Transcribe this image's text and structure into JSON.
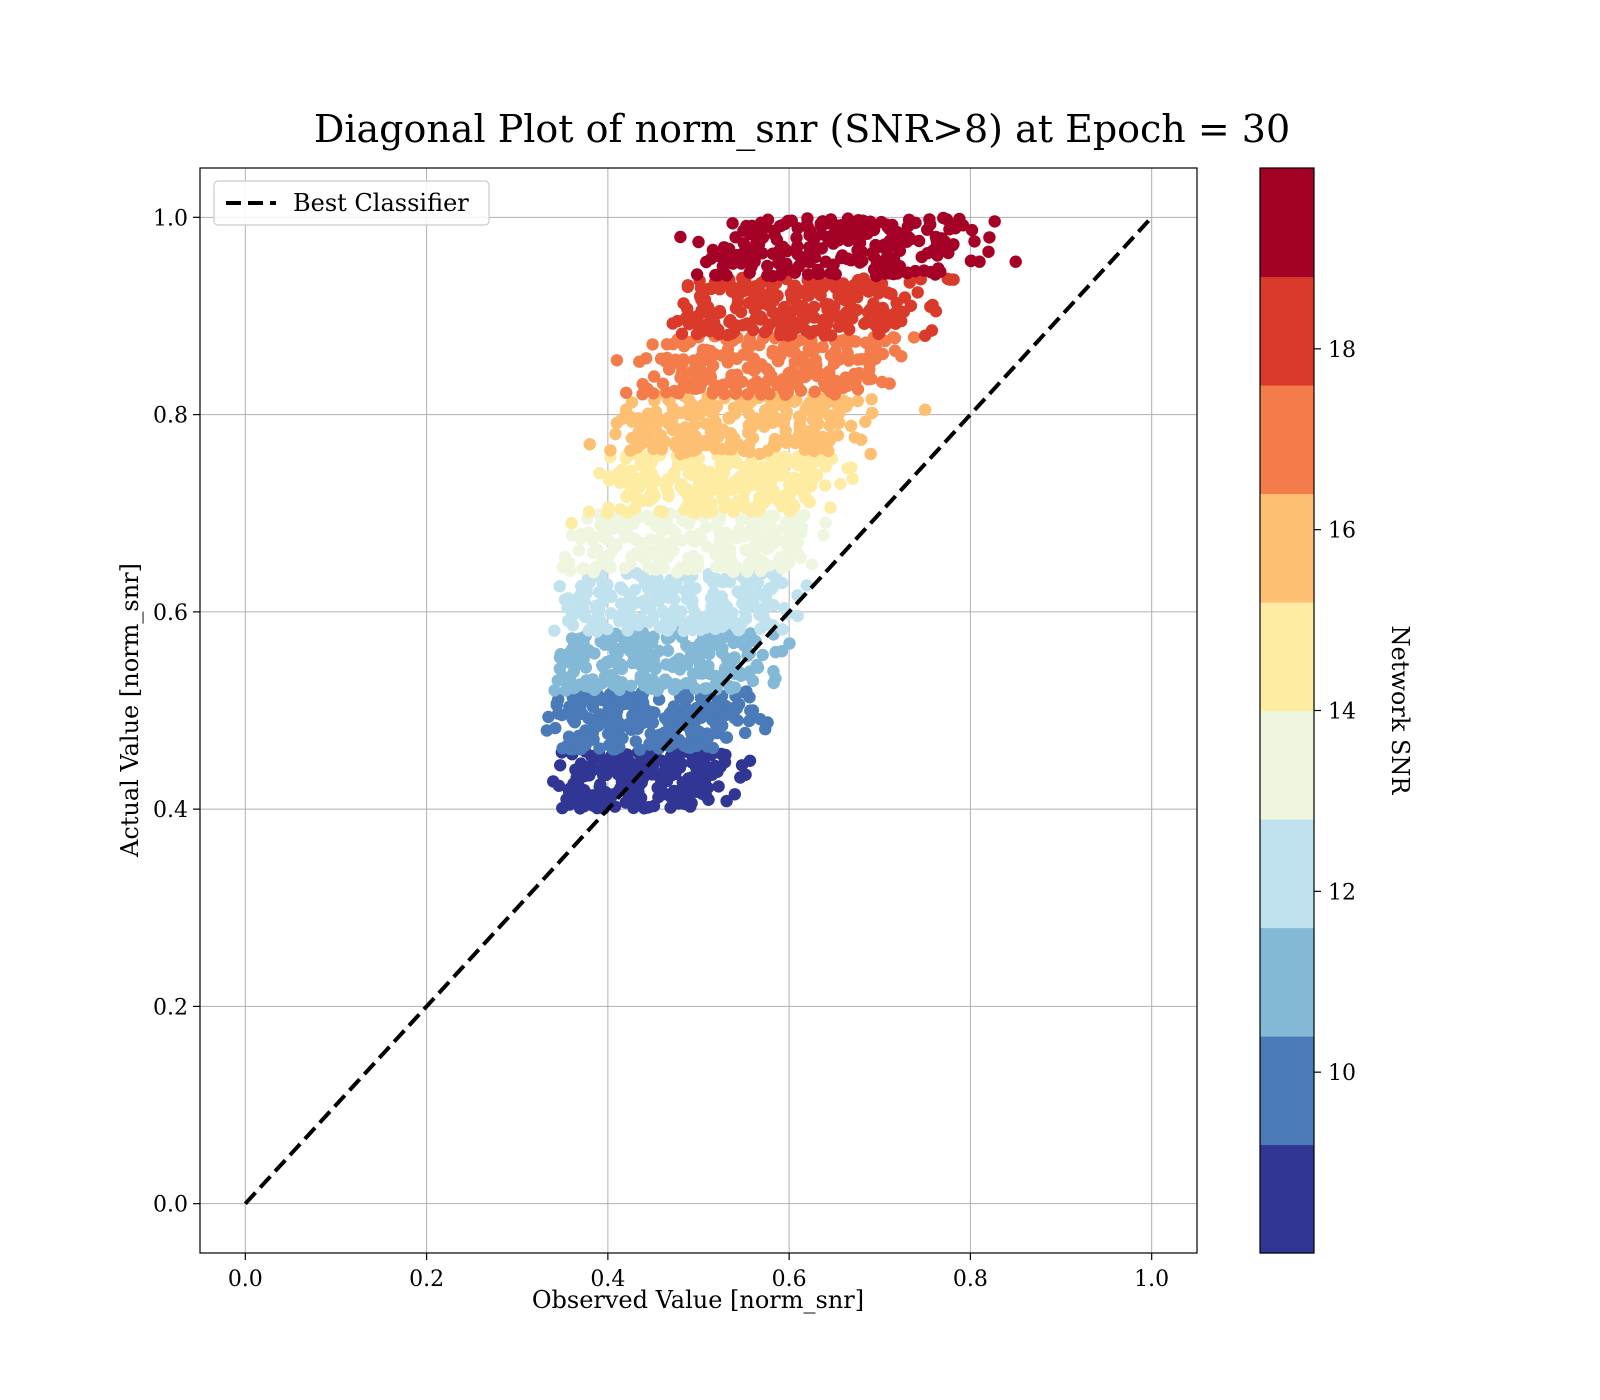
{
  "chart_data": {
    "type": "scatter",
    "title": "Diagonal Plot of norm_snr (SNR>8) at Epoch = 30",
    "xlabel": "Observed Value [norm_snr]",
    "ylabel": "Actual Value [norm_snr]",
    "xlim": [
      -0.05,
      1.05
    ],
    "ylim": [
      -0.05,
      1.05
    ],
    "xticks": [
      "0.0",
      "0.2",
      "0.4",
      "0.6",
      "0.8",
      "1.0"
    ],
    "yticks": [
      "0.0",
      "0.2",
      "0.4",
      "0.6",
      "0.8",
      "1.0"
    ],
    "grid": true,
    "legend": {
      "position": "top-left",
      "entries": [
        "Best Classifier"
      ]
    },
    "reference_line": {
      "name": "Best Classifier",
      "style": "dashed",
      "color": "#000000",
      "x": [
        0.0,
        1.0
      ],
      "y": [
        0.0,
        1.0
      ]
    },
    "colorbar": {
      "label": "Network SNR",
      "min": 8,
      "max": 20,
      "ticks": [
        "10",
        "12",
        "14",
        "16",
        "18"
      ],
      "tick_values": [
        10,
        12,
        14,
        16,
        18
      ],
      "colors": [
        "#313695",
        "#4575b4",
        "#74add1",
        "#abd9e9",
        "#e0f3f8",
        "#fee090",
        "#fdae61",
        "#f46d43",
        "#d73027",
        "#a50026"
      ],
      "display_colors": [
        "#313695",
        "#4a7ab7",
        "#83b8d7",
        "#c0e2ee",
        "#eef6e0",
        "#feeca2",
        "#fdbf71",
        "#f47c4a",
        "#da3a2a",
        "#a50026"
      ]
    },
    "bands": [
      {
        "snr": [
          8.0,
          9.2
        ],
        "y": [
          0.4,
          0.46
        ],
        "x_left": [
          0.35,
          0.37
        ],
        "x_right": [
          0.49,
          0.54
        ]
      },
      {
        "snr": [
          9.2,
          10.4
        ],
        "y": [
          0.46,
          0.52
        ],
        "x_left": [
          0.35,
          0.36
        ],
        "x_right": [
          0.53,
          0.56
        ]
      },
      {
        "snr": [
          10.4,
          11.6
        ],
        "y": [
          0.52,
          0.58
        ],
        "x_left": [
          0.35,
          0.36
        ],
        "x_right": [
          0.55,
          0.57
        ]
      },
      {
        "snr": [
          11.6,
          12.8
        ],
        "y": [
          0.58,
          0.64
        ],
        "x_left": [
          0.36,
          0.37
        ],
        "x_right": [
          0.57,
          0.6
        ]
      },
      {
        "snr": [
          12.8,
          14.0
        ],
        "y": [
          0.64,
          0.7
        ],
        "x_left": [
          0.37,
          0.39
        ],
        "x_right": [
          0.6,
          0.62
        ]
      },
      {
        "snr": [
          14.0,
          15.2
        ],
        "y": [
          0.7,
          0.76
        ],
        "x_left": [
          0.4,
          0.42
        ],
        "x_right": [
          0.62,
          0.64
        ]
      },
      {
        "snr": [
          15.2,
          16.4
        ],
        "y": [
          0.76,
          0.82
        ],
        "x_left": [
          0.42,
          0.44
        ],
        "x_right": [
          0.64,
          0.67
        ]
      },
      {
        "snr": [
          16.4,
          17.6
        ],
        "y": [
          0.82,
          0.88
        ],
        "x_left": [
          0.44,
          0.47
        ],
        "x_right": [
          0.68,
          0.71
        ]
      },
      {
        "snr": [
          17.6,
          18.8
        ],
        "y": [
          0.88,
          0.94
        ],
        "x_left": [
          0.48,
          0.51
        ],
        "x_right": [
          0.72,
          0.75
        ]
      },
      {
        "snr": [
          18.8,
          20.0
        ],
        "y": [
          0.94,
          1.0
        ],
        "x_left": [
          0.52,
          0.55
        ],
        "x_right": [
          0.76,
          0.8
        ]
      }
    ],
    "outliers": [
      {
        "x": 0.85,
        "y": 0.955,
        "snr": 19.5
      },
      {
        "x": 0.82,
        "y": 0.965,
        "snr": 19.5
      },
      {
        "x": 0.81,
        "y": 0.955,
        "snr": 19.4
      },
      {
        "x": 0.48,
        "y": 0.98,
        "snr": 19.6
      },
      {
        "x": 0.5,
        "y": 0.975,
        "snr": 19.6
      },
      {
        "x": 0.75,
        "y": 0.805,
        "snr": 16.0
      },
      {
        "x": 0.69,
        "y": 0.76,
        "snr": 15.8
      },
      {
        "x": 0.67,
        "y": 0.735,
        "snr": 15.0
      },
      {
        "x": 0.41,
        "y": 0.855,
        "snr": 17.0
      },
      {
        "x": 0.36,
        "y": 0.69,
        "snr": 14.2
      },
      {
        "x": 0.38,
        "y": 0.77,
        "snr": 15.6
      },
      {
        "x": 0.56,
        "y": 0.5,
        "snr": 9.8
      },
      {
        "x": 0.54,
        "y": 0.415,
        "snr": 8.6
      },
      {
        "x": 0.56,
        "y": 0.53,
        "snr": 10.6
      },
      {
        "x": 0.75,
        "y": 0.88,
        "snr": 17.8
      },
      {
        "x": 0.42,
        "y": 0.805,
        "snr": 16.2
      }
    ]
  }
}
